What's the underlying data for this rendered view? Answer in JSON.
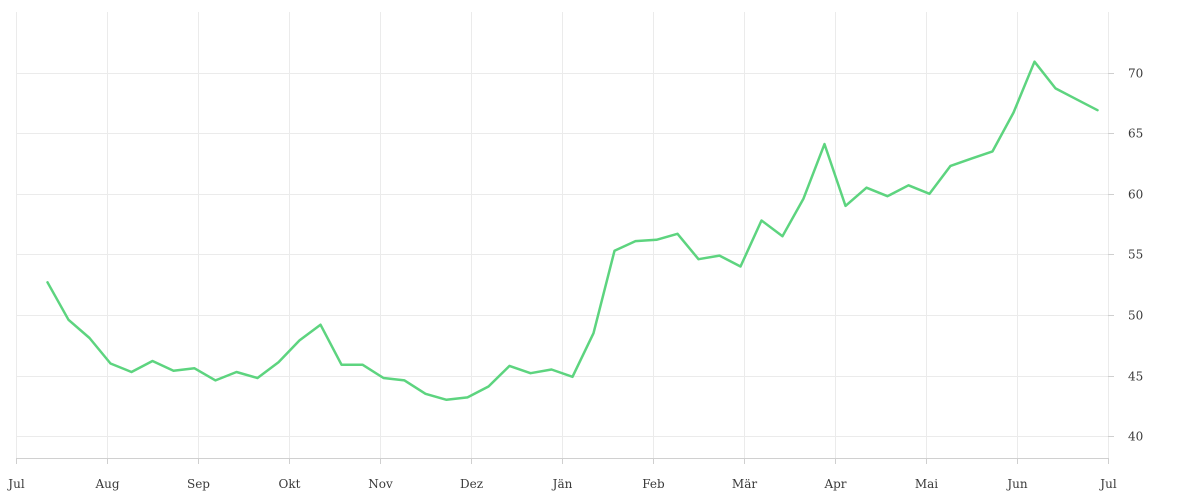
{
  "chart_data": {
    "type": "line",
    "title": "",
    "xlabel": "",
    "ylabel": "",
    "x_ticks": [
      "Jul",
      "Aug",
      "Sep",
      "Okt",
      "Nov",
      "Dez",
      "Jän",
      "Feb",
      "Mär",
      "Apr",
      "Mai",
      "Jun",
      "Jul"
    ],
    "y_ticks": [
      40,
      45,
      50,
      55,
      60,
      65,
      70
    ],
    "xlim": [
      0,
      52
    ],
    "ylim": [
      38.2,
      75
    ],
    "y_axis_position": "right",
    "grid": true,
    "line_color": "#5dd47f",
    "series": [
      {
        "x": [
          1.5,
          2.5,
          3.5,
          4.5,
          5.5,
          6.5,
          7.5,
          8.5,
          9.5,
          10.5,
          11.5,
          12.5,
          13.5,
          14.5,
          15.5,
          16.5,
          17.5,
          18.5,
          19.5,
          20.5,
          21.5,
          22.5,
          23.5,
          24.5,
          25.5,
          26.5,
          27.5,
          28.5,
          29.5,
          30.5,
          31.5,
          32.5,
          33.5,
          34.5,
          35.5,
          36.5,
          37.5,
          38.5,
          39.5,
          40.5,
          41.5,
          42.5,
          43.5,
          44.5,
          45.5,
          46.5,
          47.5,
          48.5,
          49.5,
          50.5,
          51.5
        ],
        "values": [
          52.7,
          49.6,
          48.1,
          46.0,
          45.3,
          46.2,
          45.4,
          45.6,
          44.6,
          45.3,
          44.8,
          46.1,
          47.9,
          49.2,
          45.9,
          45.9,
          44.8,
          44.6,
          43.5,
          43.0,
          43.2,
          44.1,
          45.8,
          45.2,
          45.5,
          44.9,
          48.5,
          55.3,
          56.1,
          56.2,
          56.7,
          54.6,
          54.9,
          54.0,
          57.8,
          56.5,
          59.6,
          64.1,
          59.0,
          60.5,
          59.8,
          60.7,
          60.0,
          62.3,
          62.9,
          63.5,
          66.7,
          70.9,
          68.7,
          67.8,
          66.9
        ]
      }
    ]
  }
}
